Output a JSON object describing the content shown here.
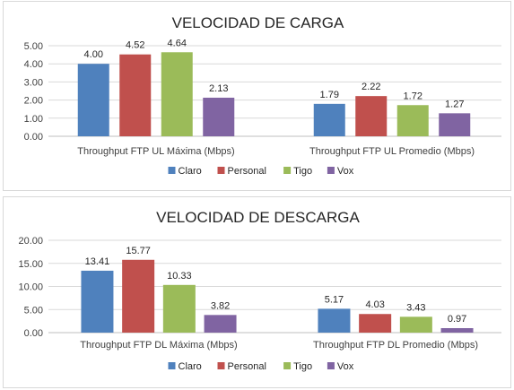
{
  "chart_data": [
    {
      "type": "bar",
      "title": "VELOCIDAD DE CARGA",
      "categories": [
        "Throughput FTP UL Máxima (Mbps)",
        "Throughput FTP UL Promedio (Mbps)"
      ],
      "series": [
        {
          "name": "Claro",
          "values": [
            4.0,
            1.79
          ],
          "labels": [
            "4.00",
            "1.79"
          ]
        },
        {
          "name": "Personal",
          "values": [
            4.52,
            2.22
          ],
          "labels": [
            "4.52",
            "2.22"
          ]
        },
        {
          "name": "Tigo",
          "values": [
            4.64,
            1.72
          ],
          "labels": [
            "4.64",
            "1.72"
          ]
        },
        {
          "name": "Vox",
          "values": [
            2.13,
            1.27
          ],
          "labels": [
            "2.13",
            "1.27"
          ]
        }
      ],
      "ylim": [
        0,
        5
      ],
      "yticks": [
        "0.00",
        "1.00",
        "2.00",
        "3.00",
        "4.00",
        "5.00"
      ],
      "grid": true,
      "legend_position": "bottom"
    },
    {
      "type": "bar",
      "title": "VELOCIDAD DE DESCARGA",
      "categories": [
        "Throughput FTP DL Máxima (Mbps)",
        "Throughput FTP DL Promedio (Mbps)"
      ],
      "series": [
        {
          "name": "Claro",
          "values": [
            13.41,
            5.17
          ],
          "labels": [
            "13.41",
            "5.17"
          ]
        },
        {
          "name": "Personal",
          "values": [
            15.77,
            4.03
          ],
          "labels": [
            "15.77",
            "4.03"
          ]
        },
        {
          "name": "Tigo",
          "values": [
            10.33,
            3.43
          ],
          "labels": [
            "10.33",
            "3.43"
          ]
        },
        {
          "name": "Vox",
          "values": [
            3.82,
            0.97
          ],
          "labels": [
            "3.82",
            "0.97"
          ]
        }
      ],
      "ylim": [
        0,
        20
      ],
      "yticks": [
        "0.00",
        "5.00",
        "10.00",
        "15.00",
        "20.00"
      ],
      "grid": true,
      "legend_position": "bottom"
    }
  ],
  "colors": {
    "Claro": "#4f81bd",
    "Personal": "#c0504d",
    "Tigo": "#9bbb59",
    "Vox": "#8064a2"
  }
}
